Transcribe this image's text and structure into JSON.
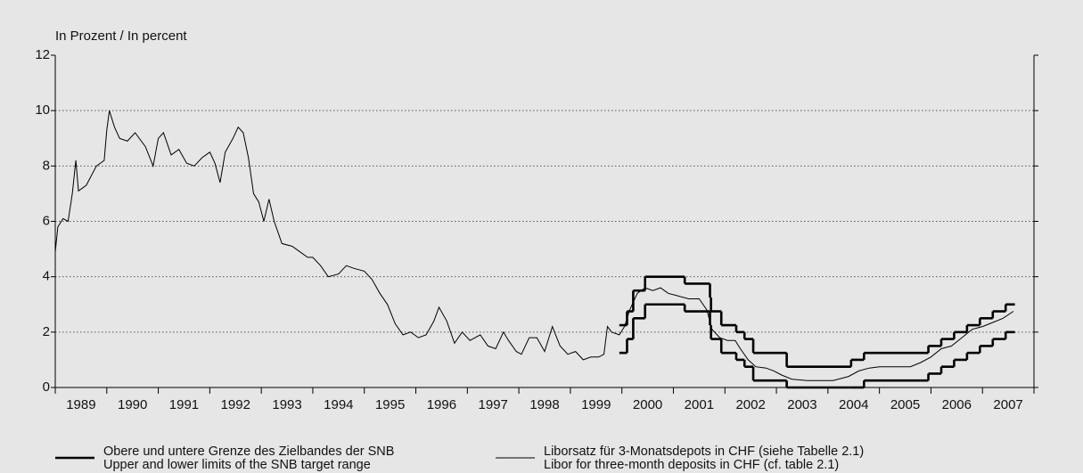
{
  "chart_data": {
    "type": "line",
    "title": "In Prozent / In percent",
    "xlim": [
      1989,
      2008
    ],
    "xticks": [
      {
        "value": 1989.5,
        "label": "1989"
      },
      {
        "value": 1990.5,
        "label": "1990"
      },
      {
        "value": 1991.5,
        "label": "1991"
      },
      {
        "value": 1992.5,
        "label": "1992"
      },
      {
        "value": 1993.5,
        "label": "1993"
      },
      {
        "value": 1994.5,
        "label": "1994"
      },
      {
        "value": 1995.5,
        "label": "1995"
      },
      {
        "value": 1996.5,
        "label": "1996"
      },
      {
        "value": 1997.5,
        "label": "1997"
      },
      {
        "value": 1998.5,
        "label": "1998"
      },
      {
        "value": 1999.5,
        "label": "1999"
      },
      {
        "value": 2000.5,
        "label": "2000"
      },
      {
        "value": 2001.5,
        "label": "2001"
      },
      {
        "value": 2002.5,
        "label": "2002"
      },
      {
        "value": 2003.5,
        "label": "2003"
      },
      {
        "value": 2004.5,
        "label": "2004"
      },
      {
        "value": 2005.5,
        "label": "2005"
      },
      {
        "value": 2006.5,
        "label": "2006"
      },
      {
        "value": 2007.5,
        "label": "2007"
      }
    ],
    "xminorticks": [
      1989,
      1990,
      1991,
      1992,
      1993,
      1994,
      1995,
      1996,
      1997,
      1998,
      1999,
      2000,
      2001,
      2002,
      2003,
      2004,
      2005,
      2006,
      2007,
      2008
    ],
    "ylim": [
      0,
      12
    ],
    "yticks": [
      0,
      2,
      4,
      6,
      8,
      10,
      12
    ],
    "grid": true,
    "series": [
      {
        "name": "Liborsatz für 3-Monatsdepots in CHF (siehe Tabelle 2.1)",
        "name_en": "Libor for three-month deposits in CHF (cf. table 2.1)",
        "color": "#000000",
        "width": 1,
        "step": false,
        "x": [
          1989.0,
          1989.05,
          1989.15,
          1989.25,
          1989.33,
          1989.4,
          1989.45,
          1989.6,
          1989.8,
          1989.95,
          1990.0,
          1990.05,
          1990.15,
          1990.25,
          1990.4,
          1990.55,
          1990.75,
          1990.9,
          1991.0,
          1991.1,
          1991.25,
          1991.4,
          1991.55,
          1991.7,
          1991.85,
          1992.0,
          1992.1,
          1992.2,
          1992.3,
          1992.45,
          1992.55,
          1992.65,
          1992.75,
          1992.85,
          1992.95,
          1993.05,
          1993.15,
          1993.25,
          1993.4,
          1993.6,
          1993.75,
          1993.9,
          1994.0,
          1994.15,
          1994.3,
          1994.5,
          1994.65,
          1994.8,
          1995.0,
          1995.15,
          1995.3,
          1995.45,
          1995.6,
          1995.75,
          1995.9,
          1996.05,
          1996.2,
          1996.35,
          1996.45,
          1996.6,
          1996.75,
          1996.9,
          1997.05,
          1997.25,
          1997.4,
          1997.55,
          1997.7,
          1997.8,
          1997.95,
          1998.05,
          1998.2,
          1998.35,
          1998.5,
          1998.65,
          1998.8,
          1998.95,
          1999.1,
          1999.25,
          1999.4,
          1999.55,
          1999.65,
          1999.72,
          1999.8,
          1999.95,
          2000.05,
          2000.15,
          2000.3,
          2000.45,
          2000.6,
          2000.75,
          2000.9,
          2001.1,
          2001.3,
          2001.5,
          2001.65,
          2001.75,
          2001.9,
          2002.05,
          2002.2,
          2002.3,
          2002.45,
          2002.6,
          2002.8,
          2002.95,
          2003.1,
          2003.3,
          2003.6,
          2003.9,
          2004.1,
          2004.4,
          2004.6,
          2004.8,
          2005.0,
          2005.3,
          2005.6,
          2005.8,
          2006.0,
          2006.2,
          2006.4,
          2006.6,
          2006.8,
          2007.0,
          2007.2,
          2007.4,
          2007.6
        ],
        "values": [
          4.9,
          5.8,
          6.1,
          6.0,
          7.0,
          8.2,
          7.1,
          7.3,
          8.0,
          8.2,
          9.3,
          10.0,
          9.4,
          9.0,
          8.9,
          9.2,
          8.7,
          8.0,
          9.0,
          9.2,
          8.4,
          8.6,
          8.1,
          8.0,
          8.3,
          8.5,
          8.1,
          7.4,
          8.5,
          9.0,
          9.4,
          9.2,
          8.3,
          7.0,
          6.7,
          6.0,
          6.8,
          6.0,
          5.2,
          5.1,
          4.9,
          4.7,
          4.7,
          4.4,
          4.0,
          4.1,
          4.4,
          4.3,
          4.2,
          3.9,
          3.4,
          3.0,
          2.3,
          1.9,
          2.0,
          1.8,
          1.9,
          2.4,
          2.9,
          2.4,
          1.6,
          2.0,
          1.7,
          1.9,
          1.5,
          1.4,
          2.0,
          1.7,
          1.3,
          1.2,
          1.8,
          1.8,
          1.3,
          2.2,
          1.5,
          1.2,
          1.3,
          1.0,
          1.1,
          1.1,
          1.2,
          2.2,
          2.0,
          1.9,
          2.2,
          2.8,
          3.4,
          3.6,
          3.5,
          3.6,
          3.4,
          3.3,
          3.2,
          3.2,
          2.8,
          2.1,
          1.8,
          1.7,
          1.7,
          1.4,
          1.0,
          0.75,
          0.7,
          0.6,
          0.45,
          0.3,
          0.25,
          0.25,
          0.25,
          0.4,
          0.6,
          0.7,
          0.75,
          0.75,
          0.75,
          0.9,
          1.1,
          1.4,
          1.5,
          1.8,
          2.1,
          2.2,
          2.35,
          2.5,
          2.75
        ]
      },
      {
        "name": "Obere und untere Grenze des Zielbandes der SNB",
        "name_en": "Upper and lower limits of the SNB target range",
        "color": "#000000",
        "width": 2.6,
        "step": true,
        "x": [
          1999.95,
          2000.1,
          2000.22,
          2000.45,
          2001.22,
          2001.71,
          2001.73,
          2001.93,
          2002.22,
          2002.38,
          2002.55,
          2003.2,
          2004.45,
          2004.7,
          2005.95,
          2006.2,
          2006.45,
          2006.7,
          2006.95,
          2007.2,
          2007.45,
          2007.63
        ],
        "values": [
          2.25,
          2.75,
          3.5,
          4.0,
          3.75,
          3.25,
          2.75,
          2.25,
          2.0,
          1.75,
          1.25,
          0.75,
          1.0,
          1.25,
          1.5,
          1.75,
          2.0,
          2.25,
          2.5,
          2.75,
          3.0,
          3.0
        ]
      },
      {
        "color": "#000000",
        "width": 2.6,
        "step": true,
        "x": [
          1999.95,
          2000.1,
          2000.22,
          2000.45,
          2001.22,
          2001.71,
          2001.73,
          2001.93,
          2002.22,
          2002.38,
          2002.55,
          2003.2,
          2004.45,
          2004.7,
          2005.95,
          2006.2,
          2006.45,
          2006.7,
          2006.95,
          2007.2,
          2007.45,
          2007.63
        ],
        "values": [
          1.25,
          1.75,
          2.5,
          3.0,
          2.75,
          2.25,
          1.75,
          1.25,
          1.0,
          0.75,
          0.25,
          0,
          0,
          0.25,
          0.5,
          0.75,
          1.0,
          1.25,
          1.5,
          1.75,
          2.0,
          2.0
        ]
      }
    ]
  }
}
